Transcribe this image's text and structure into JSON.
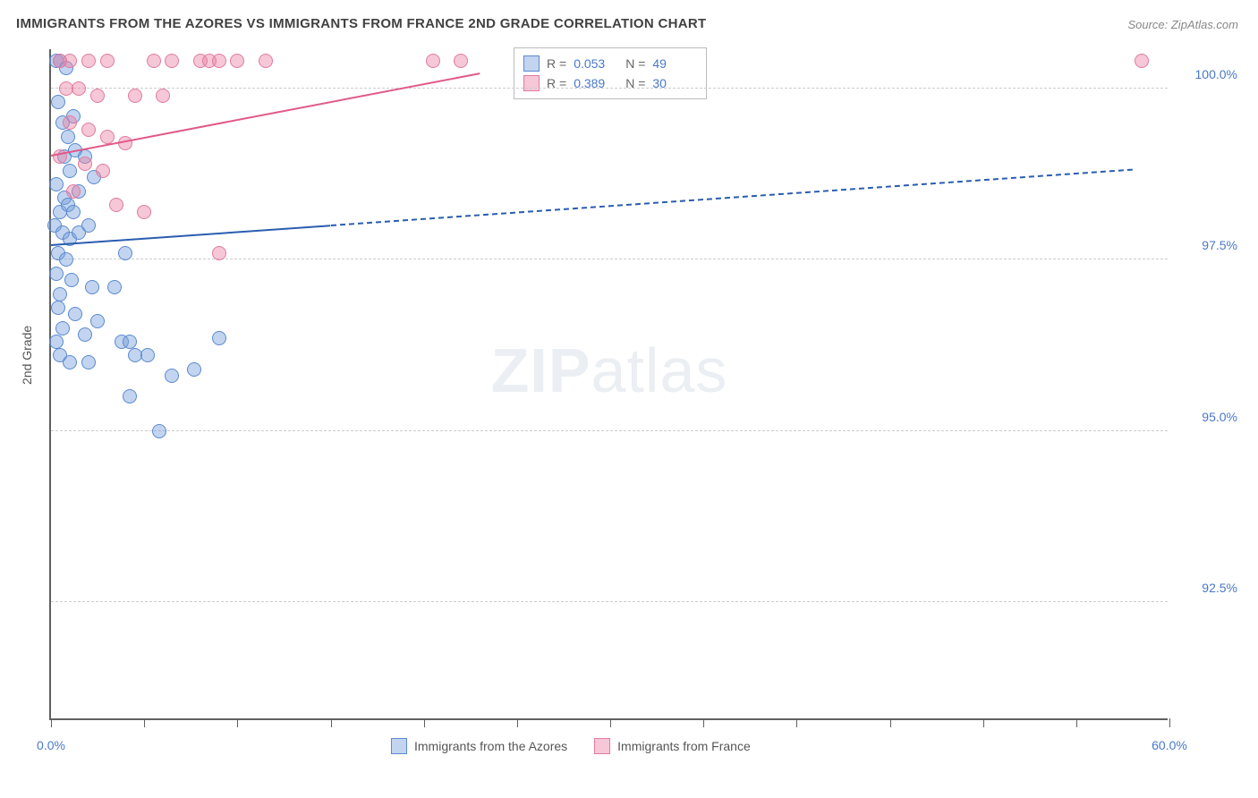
{
  "title": "IMMIGRANTS FROM THE AZORES VS IMMIGRANTS FROM FRANCE 2ND GRADE CORRELATION CHART",
  "source_prefix": "Source: ",
  "source": "ZipAtlas.com",
  "ylabel": "2nd Grade",
  "watermark_zip": "ZIP",
  "watermark_atlas": "atlas",
  "chart": {
    "type": "scatter",
    "xlim": [
      0,
      60
    ],
    "ylim": [
      90.8,
      100.6
    ],
    "xtick_positions": [
      0,
      5,
      10,
      15,
      20,
      25,
      30,
      35,
      40,
      45,
      50,
      55,
      60
    ],
    "xtick_labels": {
      "0": "0.0%",
      "60": "60.0%"
    },
    "ytick_positions": [
      92.5,
      95.0,
      97.5,
      100.0
    ],
    "ytick_labels": [
      "92.5%",
      "95.0%",
      "97.5%",
      "100.0%"
    ],
    "grid_color": "#cccccc",
    "axis_color": "#606060",
    "background": "#ffffff",
    "series": [
      {
        "name": "Immigrants from the Azores",
        "fill": "rgba(120,160,220,0.45)",
        "stroke": "#5a8ad0",
        "line_color": "#2a5db0",
        "r": "0.053",
        "n": "49",
        "trend": {
          "x0": 0,
          "y0": 97.7,
          "x1": 58,
          "y1": 98.8,
          "solid_until_x": 15
        },
        "points": [
          [
            0.3,
            100.4
          ],
          [
            0.5,
            100.4
          ],
          [
            0.8,
            100.3
          ],
          [
            0.4,
            99.8
          ],
          [
            0.6,
            99.5
          ],
          [
            1.0,
            98.8
          ],
          [
            0.3,
            98.6
          ],
          [
            0.7,
            98.4
          ],
          [
            0.5,
            98.2
          ],
          [
            0.9,
            98.3
          ],
          [
            1.2,
            98.2
          ],
          [
            0.2,
            98.0
          ],
          [
            0.6,
            97.9
          ],
          [
            1.0,
            97.8
          ],
          [
            1.5,
            97.9
          ],
          [
            2.0,
            98.0
          ],
          [
            0.4,
            97.6
          ],
          [
            0.8,
            97.5
          ],
          [
            0.3,
            97.3
          ],
          [
            1.1,
            97.2
          ],
          [
            0.5,
            97.0
          ],
          [
            2.2,
            97.1
          ],
          [
            3.4,
            97.1
          ],
          [
            4.0,
            97.6
          ],
          [
            0.4,
            96.8
          ],
          [
            1.3,
            96.7
          ],
          [
            2.5,
            96.6
          ],
          [
            0.6,
            96.5
          ],
          [
            1.8,
            96.4
          ],
          [
            0.3,
            96.3
          ],
          [
            3.8,
            96.3
          ],
          [
            4.2,
            96.3
          ],
          [
            9.0,
            96.35
          ],
          [
            0.5,
            96.1
          ],
          [
            1.0,
            96.0
          ],
          [
            2.0,
            96.0
          ],
          [
            4.5,
            96.1
          ],
          [
            5.2,
            96.1
          ],
          [
            6.5,
            95.8
          ],
          [
            7.7,
            95.9
          ],
          [
            4.2,
            95.5
          ],
          [
            5.8,
            95.0
          ],
          [
            0.7,
            99.0
          ],
          [
            1.3,
            99.1
          ],
          [
            1.8,
            99.0
          ],
          [
            2.3,
            98.7
          ],
          [
            1.5,
            98.5
          ],
          [
            0.9,
            99.3
          ],
          [
            1.2,
            99.6
          ]
        ]
      },
      {
        "name": "Immigrants from France",
        "fill": "rgba(235,130,165,0.45)",
        "stroke": "#e07ba0",
        "line_color": "#e05a88",
        "r": "0.389",
        "n": "30",
        "trend": {
          "x0": 0,
          "y0": 99.0,
          "x1": 23,
          "y1": 100.2,
          "solid_until_x": 23
        },
        "points": [
          [
            0.5,
            100.4
          ],
          [
            1.0,
            100.4
          ],
          [
            2.0,
            100.4
          ],
          [
            3.0,
            100.4
          ],
          [
            5.5,
            100.4
          ],
          [
            6.5,
            100.4
          ],
          [
            8.0,
            100.4
          ],
          [
            8.5,
            100.4
          ],
          [
            9.0,
            100.4
          ],
          [
            10.0,
            100.4
          ],
          [
            11.5,
            100.4
          ],
          [
            20.5,
            100.4
          ],
          [
            22.0,
            100.4
          ],
          [
            58.5,
            100.4
          ],
          [
            0.8,
            100.0
          ],
          [
            1.5,
            100.0
          ],
          [
            2.5,
            99.9
          ],
          [
            4.5,
            99.9
          ],
          [
            6.0,
            99.9
          ],
          [
            1.0,
            99.5
          ],
          [
            2.0,
            99.4
          ],
          [
            3.0,
            99.3
          ],
          [
            4.0,
            99.2
          ],
          [
            0.5,
            99.0
          ],
          [
            1.8,
            98.9
          ],
          [
            2.8,
            98.8
          ],
          [
            1.2,
            98.5
          ],
          [
            3.5,
            98.3
          ],
          [
            5.0,
            98.2
          ],
          [
            9.0,
            97.6
          ]
        ]
      }
    ]
  },
  "stats_labels": {
    "r": "R =",
    "n": "N ="
  },
  "legend": [
    {
      "label": "Immigrants from the Azores",
      "fill": "rgba(120,160,220,0.45)",
      "stroke": "#5a8ad0"
    },
    {
      "label": "Immigrants from France",
      "fill": "rgba(235,130,165,0.45)",
      "stroke": "#e07ba0"
    }
  ]
}
